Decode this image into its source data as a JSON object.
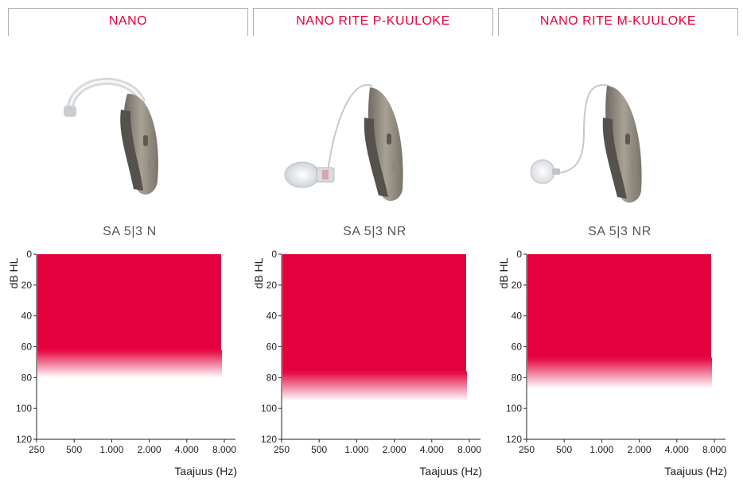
{
  "panels": [
    {
      "header": "NANO",
      "model": "SA 5|3 N",
      "device_icon": "bte-hearing-aid-icon",
      "chart_data": {
        "type": "area",
        "x_ticks": [
          "250",
          "500",
          "1.000",
          "2.000",
          "4.000",
          "8.000"
        ],
        "y_ticks": [
          "0",
          "20",
          "40",
          "60",
          "80",
          "100",
          "120"
        ],
        "ylabel": "dB HL",
        "xlabel": "Taajuus (Hz)",
        "ylim": [
          0,
          120
        ],
        "fitting_range": {
          "from_db": 0,
          "to_db": 62,
          "fade_to_db": 80,
          "from_freq": 250,
          "to_freq": 8000
        },
        "fill_color": "#e4003c"
      }
    },
    {
      "header": "NANO RITE P-KUULOKE",
      "model": "SA 5|3 NR",
      "device_icon": "rite-hearing-aid-power-icon",
      "chart_data": {
        "type": "area",
        "x_ticks": [
          "250",
          "500",
          "1.000",
          "2.000",
          "4.000",
          "8.000"
        ],
        "y_ticks": [
          "0",
          "20",
          "40",
          "60",
          "80",
          "100",
          "120"
        ],
        "ylabel": "dB HL",
        "xlabel": "Taajuus (Hz)",
        "ylim": [
          0,
          120
        ],
        "fitting_range": {
          "from_db": 0,
          "to_db": 76,
          "fade_to_db": 95,
          "from_freq": 250,
          "to_freq": 8000
        },
        "fill_color": "#e4003c"
      }
    },
    {
      "header": "NANO RITE M-KUULOKE",
      "model": "SA 5|3 NR",
      "device_icon": "rite-hearing-aid-medium-icon",
      "chart_data": {
        "type": "area",
        "x_ticks": [
          "250",
          "500",
          "1.000",
          "2.000",
          "4.000",
          "8.000"
        ],
        "y_ticks": [
          "0",
          "20",
          "40",
          "60",
          "80",
          "100",
          "120"
        ],
        "ylabel": "dB HL",
        "xlabel": "Taajuus (Hz)",
        "ylim": [
          0,
          120
        ],
        "fitting_range": {
          "from_db": 0,
          "to_db": 67,
          "fade_to_db": 87,
          "from_freq": 250,
          "to_freq": 8000
        },
        "fill_color": "#e4003c"
      }
    }
  ]
}
